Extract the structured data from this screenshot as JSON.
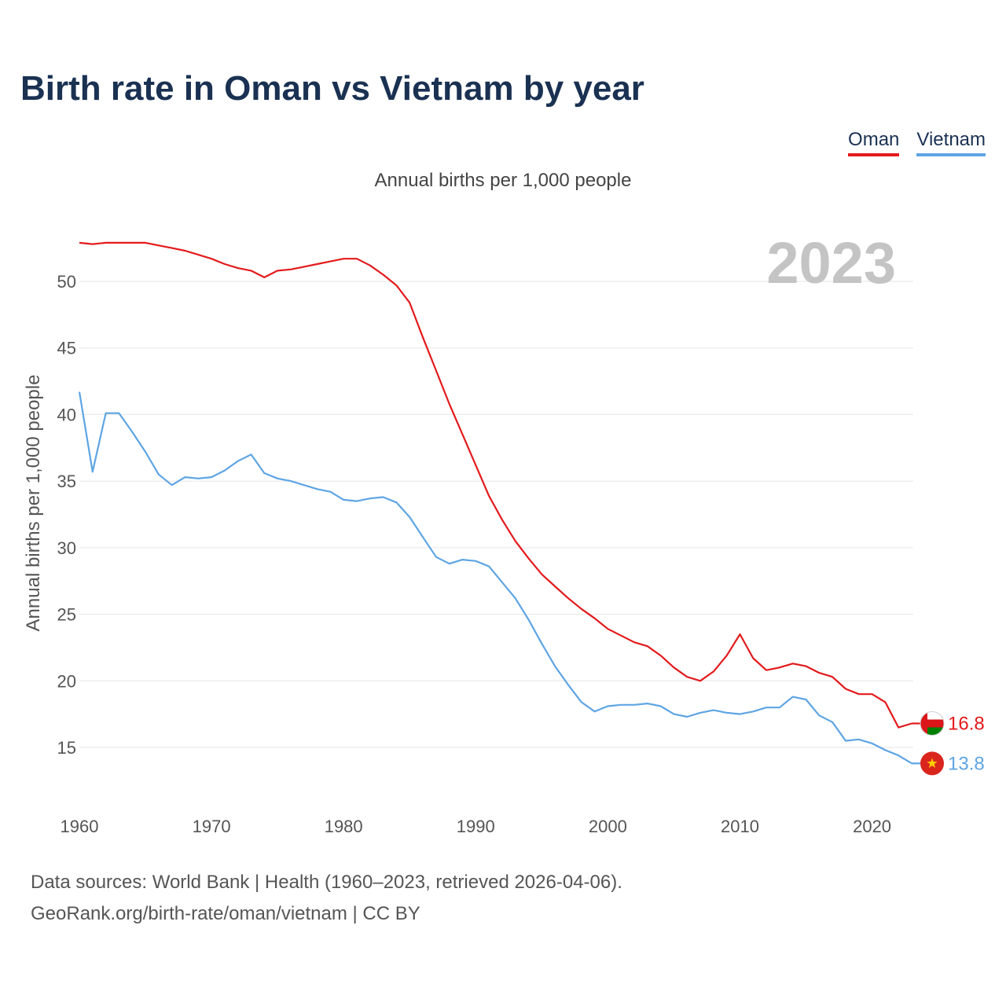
{
  "title": "Birth rate in Oman vs Vietnam by year",
  "legend": {
    "oman": "Oman",
    "vietnam": "Vietnam"
  },
  "subtitle": "Annual births per 1,000 people",
  "year_label": "2023",
  "footer": {
    "line1": "Data sources: World Bank | Health (1960–2023, retrieved 2026-04-06).",
    "line2": "GeoRank.org/birth-rate/oman/vietnam | CC BY"
  },
  "colors": {
    "oman": "#e31a1c",
    "vietnam": "#5ea5e3",
    "title": "#1a3152"
  },
  "chart_data": {
    "type": "line",
    "title": "Birth rate in Oman vs Vietnam by year",
    "xlabel": "",
    "ylabel": "Annual births per 1,000 people",
    "xlim": [
      1960,
      2023
    ],
    "ylim": [
      12,
      54
    ],
    "yticks": [
      15,
      20,
      25,
      30,
      35,
      40,
      45,
      50
    ],
    "xticks": [
      1960,
      1970,
      1980,
      1990,
      2000,
      2010,
      2020
    ],
    "grid": true,
    "legend_position": "top-right",
    "x": [
      1960,
      1961,
      1962,
      1963,
      1964,
      1965,
      1966,
      1967,
      1968,
      1969,
      1970,
      1971,
      1972,
      1973,
      1974,
      1975,
      1976,
      1977,
      1978,
      1979,
      1980,
      1981,
      1982,
      1983,
      1984,
      1985,
      1986,
      1987,
      1988,
      1989,
      1990,
      1991,
      1992,
      1993,
      1994,
      1995,
      1996,
      1997,
      1998,
      1999,
      2000,
      2001,
      2002,
      2003,
      2004,
      2005,
      2006,
      2007,
      2008,
      2009,
      2010,
      2011,
      2012,
      2013,
      2014,
      2015,
      2016,
      2017,
      2018,
      2019,
      2020,
      2021,
      2022,
      2023
    ],
    "series": [
      {
        "name": "Oman",
        "color": "#e31a1c",
        "end_label": "16.8",
        "flag": "oman",
        "values": [
          52.9,
          52.8,
          52.9,
          52.9,
          52.9,
          52.9,
          52.7,
          52.5,
          52.3,
          52.0,
          51.7,
          51.3,
          51.0,
          50.8,
          50.3,
          50.8,
          50.9,
          51.1,
          51.3,
          51.5,
          51.7,
          51.7,
          51.2,
          50.5,
          49.7,
          48.4,
          45.8,
          43.3,
          40.8,
          38.5,
          36.2,
          33.9,
          32.1,
          30.5,
          29.2,
          28.0,
          27.1,
          26.2,
          25.4,
          24.7,
          23.9,
          23.4,
          22.9,
          22.6,
          21.9,
          21.0,
          20.3,
          20.0,
          20.7,
          21.9,
          23.5,
          21.7,
          20.8,
          21.0,
          21.3,
          21.1,
          20.6,
          20.3,
          19.4,
          19.0,
          19.0,
          18.4,
          16.5,
          16.8
        ]
      },
      {
        "name": "Vietnam",
        "color": "#5ea5e3",
        "end_label": "13.8",
        "flag": "vietnam",
        "values": [
          41.7,
          35.7,
          40.1,
          40.1,
          38.7,
          37.2,
          35.5,
          34.7,
          35.3,
          35.2,
          35.3,
          35.8,
          36.5,
          37.0,
          35.6,
          35.2,
          35.0,
          34.7,
          34.4,
          34.2,
          33.6,
          33.5,
          33.7,
          33.8,
          33.4,
          32.3,
          30.8,
          29.3,
          28.8,
          29.1,
          29.0,
          28.6,
          27.4,
          26.2,
          24.6,
          22.8,
          21.1,
          19.7,
          18.4,
          17.7,
          18.1,
          18.2,
          18.2,
          18.3,
          18.1,
          17.5,
          17.3,
          17.6,
          17.8,
          17.6,
          17.5,
          17.7,
          18.0,
          18.0,
          18.8,
          18.6,
          17.4,
          16.9,
          15.5,
          15.6,
          15.3,
          14.8,
          14.4,
          13.8
        ]
      }
    ]
  }
}
